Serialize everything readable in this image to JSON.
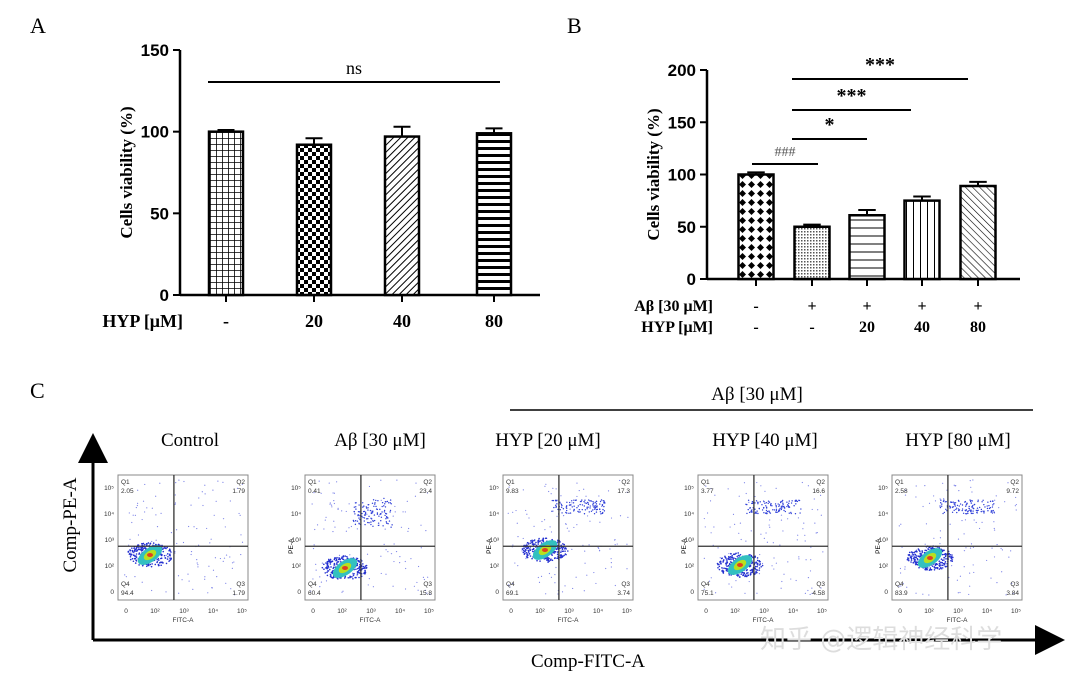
{
  "panel_labels": {
    "a": "A",
    "b": "B",
    "c": "C"
  },
  "watermark": "知乎 @逻辑神经科学",
  "chart_data": [
    {
      "type": "bar",
      "panel": "A",
      "ylabel": "Cells viability (%)",
      "ylim": [
        0,
        150
      ],
      "yticks": [
        "0",
        "50",
        "100",
        "150"
      ],
      "row_label": "HYP [μM]",
      "categories": [
        "-",
        "20",
        "40",
        "80"
      ],
      "values": [
        100,
        92,
        97,
        99
      ],
      "errors": [
        1,
        4,
        6,
        3
      ],
      "patterns": [
        "grid",
        "checker",
        "diagonal",
        "horizontal"
      ],
      "significance": [
        {
          "from": 0,
          "to": 3,
          "label": "ns"
        }
      ]
    },
    {
      "type": "bar",
      "panel": "B",
      "ylabel": "Cells viability (%)",
      "ylim": [
        0,
        200
      ],
      "yticks": [
        "0",
        "50",
        "100",
        "150",
        "200"
      ],
      "row_labels": [
        "Aβ [30 μM]",
        "HYP [μM]"
      ],
      "abeta": [
        "-",
        "+",
        "+",
        "+",
        "+"
      ],
      "categories": [
        "-",
        "-",
        "20",
        "40",
        "80"
      ],
      "values": [
        100,
        50,
        61,
        75,
        89
      ],
      "errors": [
        2,
        2,
        5,
        4,
        4
      ],
      "patterns": [
        "diamond",
        "dots",
        "horizontal",
        "vertical",
        "diagonal"
      ],
      "significance": [
        {
          "from": 0,
          "to": 1,
          "label": "###"
        },
        {
          "from": 1,
          "to": 2,
          "label": "*"
        },
        {
          "from": 1,
          "to": 3,
          "label": "***"
        },
        {
          "from": 1,
          "to": 4,
          "label": "***"
        }
      ]
    },
    {
      "type": "scatter",
      "panel": "C",
      "xlabel": "Comp-FITC-A",
      "ylabel": "Comp-PE-A",
      "group_label": "Aβ [30 μM]",
      "plot_xlabel": "FITC-A",
      "plot_ylabel": "PE-A",
      "ticks": [
        "0",
        "10²",
        "10³",
        "10⁴",
        "10⁵"
      ],
      "plots": [
        {
          "title": "Control",
          "Q1": "2.05",
          "Q2": "1.79",
          "Q3": "1.79",
          "Q4": "94.4"
        },
        {
          "title": "Aβ [30 μM]",
          "Q1": "0.41",
          "Q2": "23.4",
          "Q3": "15.8",
          "Q4": "60.4"
        },
        {
          "title": "HYP [20 μM]",
          "Q1": "9.83",
          "Q2": "17.3",
          "Q3": "3.74",
          "Q4": "69.1"
        },
        {
          "title": "HYP [40 μM]",
          "Q1": "3.77",
          "Q2": "16.6",
          "Q3": "4.58",
          "Q4": "75.1"
        },
        {
          "title": "HYP [80 μM]",
          "Q1": "2.58",
          "Q2": "9.72",
          "Q3": "3.84",
          "Q4": "83.9"
        }
      ]
    }
  ]
}
